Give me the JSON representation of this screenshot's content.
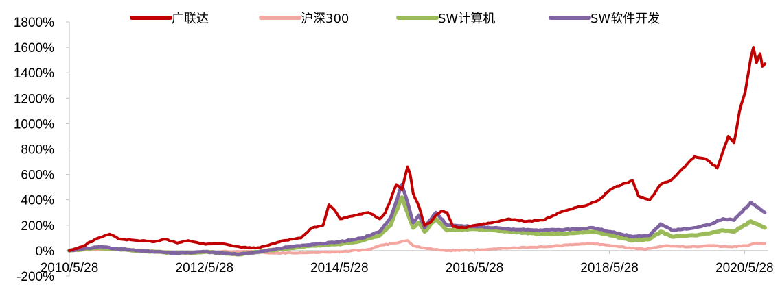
{
  "chart_data": {
    "type": "line",
    "title": "",
    "xlabel": "",
    "ylabel": "",
    "ylim": [
      -200,
      1800
    ],
    "yticks": [
      -200,
      0,
      200,
      400,
      600,
      800,
      1000,
      1200,
      1400,
      1600,
      1800
    ],
    "ytick_labels": [
      "-200%",
      "0%",
      "200%",
      "400%",
      "600%",
      "800%",
      "1000%",
      "1200%",
      "1400%",
      "1600%",
      "1800%"
    ],
    "xlim": [
      "2010/5/28",
      "2020/9/30"
    ],
    "xticks": [
      "2010/5/28",
      "2012/5/28",
      "2014/5/28",
      "2016/5/28",
      "2018/5/28",
      "2020/5/28"
    ],
    "grid": false,
    "legend_position": "top",
    "series": [
      {
        "name": "广联达",
        "color": "#C00000",
        "points": [
          [
            "2010/5/28",
            0
          ],
          [
            "2010/8/1",
            30
          ],
          [
            "2010/11/1",
            100
          ],
          [
            "2011/1/1",
            130
          ],
          [
            "2011/3/1",
            90
          ],
          [
            "2011/6/1",
            80
          ],
          [
            "2011/9/1",
            70
          ],
          [
            "2011/11/1",
            90
          ],
          [
            "2012/1/1",
            60
          ],
          [
            "2012/3/1",
            80
          ],
          [
            "2012/6/1",
            50
          ],
          [
            "2012/9/1",
            55
          ],
          [
            "2012/12/1",
            30
          ],
          [
            "2013/3/1",
            20
          ],
          [
            "2013/5/1",
            40
          ],
          [
            "2013/8/1",
            80
          ],
          [
            "2013/11/1",
            100
          ],
          [
            "2014/1/1",
            180
          ],
          [
            "2014/3/1",
            200
          ],
          [
            "2014/4/1",
            360
          ],
          [
            "2014/5/1",
            320
          ],
          [
            "2014/6/1",
            250
          ],
          [
            "2014/9/1",
            280
          ],
          [
            "2014/11/1",
            300
          ],
          [
            "2015/1/1",
            250
          ],
          [
            "2015/2/1",
            300
          ],
          [
            "2015/3/1",
            400
          ],
          [
            "2015/4/1",
            520
          ],
          [
            "2015/5/1",
            480
          ],
          [
            "2015/6/1",
            660
          ],
          [
            "2015/6/15",
            600
          ],
          [
            "2015/7/1",
            450
          ],
          [
            "2015/8/1",
            350
          ],
          [
            "2015/9/1",
            200
          ],
          [
            "2015/10/1",
            220
          ],
          [
            "2015/11/1",
            280
          ],
          [
            "2015/12/1",
            310
          ],
          [
            "2016/1/1",
            300
          ],
          [
            "2016/2/1",
            190
          ],
          [
            "2016/4/1",
            180
          ],
          [
            "2016/6/1",
            200
          ],
          [
            "2016/9/1",
            220
          ],
          [
            "2016/12/1",
            250
          ],
          [
            "2017/3/1",
            230
          ],
          [
            "2017/6/1",
            240
          ],
          [
            "2017/9/1",
            300
          ],
          [
            "2017/12/1",
            340
          ],
          [
            "2018/2/1",
            360
          ],
          [
            "2018/4/1",
            400
          ],
          [
            "2018/6/1",
            480
          ],
          [
            "2018/8/1",
            520
          ],
          [
            "2018/10/1",
            550
          ],
          [
            "2018/11/1",
            430
          ],
          [
            "2019/1/1",
            400
          ],
          [
            "2019/3/1",
            520
          ],
          [
            "2019/5/1",
            560
          ],
          [
            "2019/7/1",
            650
          ],
          [
            "2019/9/1",
            740
          ],
          [
            "2019/11/1",
            720
          ],
          [
            "2020/1/1",
            650
          ],
          [
            "2020/2/1",
            780
          ],
          [
            "2020/3/1",
            900
          ],
          [
            "2020/4/1",
            850
          ],
          [
            "2020/5/1",
            1100
          ],
          [
            "2020/6/1",
            1250
          ],
          [
            "2020/7/1",
            1520
          ],
          [
            "2020/7/15",
            1600
          ],
          [
            "2020/8/1",
            1480
          ],
          [
            "2020/8/20",
            1550
          ],
          [
            "2020/9/1",
            1450
          ],
          [
            "2020/9/15",
            1470
          ]
        ]
      },
      {
        "name": "沪深300",
        "color": "#F4A6A0",
        "points": [
          [
            "2010/5/28",
            0
          ],
          [
            "2011/1/1",
            10
          ],
          [
            "2011/6/1",
            0
          ],
          [
            "2012/1/1",
            -15
          ],
          [
            "2012/6/1",
            -10
          ],
          [
            "2013/1/1",
            -5
          ],
          [
            "2013/6/1",
            -20
          ],
          [
            "2014/1/1",
            -15
          ],
          [
            "2014/6/1",
            -10
          ],
          [
            "2014/11/1",
            10
          ],
          [
            "2015/1/1",
            40
          ],
          [
            "2015/4/1",
            60
          ],
          [
            "2015/6/1",
            80
          ],
          [
            "2015/7/1",
            40
          ],
          [
            "2015/9/1",
            20
          ],
          [
            "2016/1/1",
            0
          ],
          [
            "2016/6/1",
            5
          ],
          [
            "2016/12/1",
            20
          ],
          [
            "2017/6/1",
            30
          ],
          [
            "2017/12/1",
            50
          ],
          [
            "2018/3/1",
            55
          ],
          [
            "2018/6/1",
            40
          ],
          [
            "2018/12/1",
            10
          ],
          [
            "2019/4/1",
            40
          ],
          [
            "2019/8/1",
            30
          ],
          [
            "2019/12/1",
            40
          ],
          [
            "2020/3/1",
            30
          ],
          [
            "2020/6/1",
            40
          ],
          [
            "2020/8/1",
            60
          ],
          [
            "2020/9/15",
            55
          ]
        ]
      },
      {
        "name": "SW计算机",
        "color": "#9BBB59",
        "points": [
          [
            "2010/5/28",
            0
          ],
          [
            "2010/11/1",
            20
          ],
          [
            "2011/6/1",
            0
          ],
          [
            "2012/1/1",
            -20
          ],
          [
            "2012/6/1",
            -10
          ],
          [
            "2012/12/1",
            -30
          ],
          [
            "2013/5/1",
            0
          ],
          [
            "2013/9/1",
            20
          ],
          [
            "2014/1/1",
            40
          ],
          [
            "2014/6/1",
            50
          ],
          [
            "2014/10/1",
            80
          ],
          [
            "2015/1/1",
            120
          ],
          [
            "2015/3/1",
            200
          ],
          [
            "2015/5/1",
            420
          ],
          [
            "2015/6/1",
            300
          ],
          [
            "2015/7/1",
            180
          ],
          [
            "2015/8/1",
            220
          ],
          [
            "2015/9/1",
            150
          ],
          [
            "2015/11/1",
            250
          ],
          [
            "2016/1/1",
            160
          ],
          [
            "2016/6/1",
            170
          ],
          [
            "2016/12/1",
            150
          ],
          [
            "2017/6/1",
            130
          ],
          [
            "2017/12/1",
            140
          ],
          [
            "2018/3/1",
            150
          ],
          [
            "2018/6/1",
            120
          ],
          [
            "2018/10/1",
            80
          ],
          [
            "2019/1/1",
            90
          ],
          [
            "2019/3/1",
            150
          ],
          [
            "2019/5/1",
            110
          ],
          [
            "2019/9/1",
            120
          ],
          [
            "2019/12/1",
            140
          ],
          [
            "2020/2/1",
            160
          ],
          [
            "2020/4/1",
            150
          ],
          [
            "2020/7/1",
            230
          ],
          [
            "2020/9/15",
            180
          ]
        ]
      },
      {
        "name": "SW软件开发",
        "color": "#8064A2",
        "points": [
          [
            "2010/5/28",
            0
          ],
          [
            "2010/11/1",
            30
          ],
          [
            "2011/6/1",
            0
          ],
          [
            "2012/1/1",
            -20
          ],
          [
            "2012/6/1",
            -10
          ],
          [
            "2012/12/1",
            -30
          ],
          [
            "2013/5/1",
            0
          ],
          [
            "2013/9/1",
            30
          ],
          [
            "2014/1/1",
            50
          ],
          [
            "2014/6/1",
            70
          ],
          [
            "2014/10/1",
            100
          ],
          [
            "2015/1/1",
            150
          ],
          [
            "2015/3/1",
            260
          ],
          [
            "2015/5/1",
            520
          ],
          [
            "2015/6/1",
            380
          ],
          [
            "2015/7/1",
            220
          ],
          [
            "2015/8/1",
            280
          ],
          [
            "2015/9/1",
            180
          ],
          [
            "2015/11/1",
            300
          ],
          [
            "2016/1/1",
            200
          ],
          [
            "2016/6/1",
            190
          ],
          [
            "2016/12/1",
            170
          ],
          [
            "2017/6/1",
            160
          ],
          [
            "2017/12/1",
            170
          ],
          [
            "2018/3/1",
            180
          ],
          [
            "2018/6/1",
            150
          ],
          [
            "2018/10/1",
            110
          ],
          [
            "2019/1/1",
            120
          ],
          [
            "2019/3/1",
            210
          ],
          [
            "2019/5/1",
            160
          ],
          [
            "2019/9/1",
            180
          ],
          [
            "2019/12/1",
            210
          ],
          [
            "2020/2/1",
            250
          ],
          [
            "2020/4/1",
            240
          ],
          [
            "2020/7/1",
            380
          ],
          [
            "2020/9/15",
            300
          ]
        ]
      }
    ]
  }
}
